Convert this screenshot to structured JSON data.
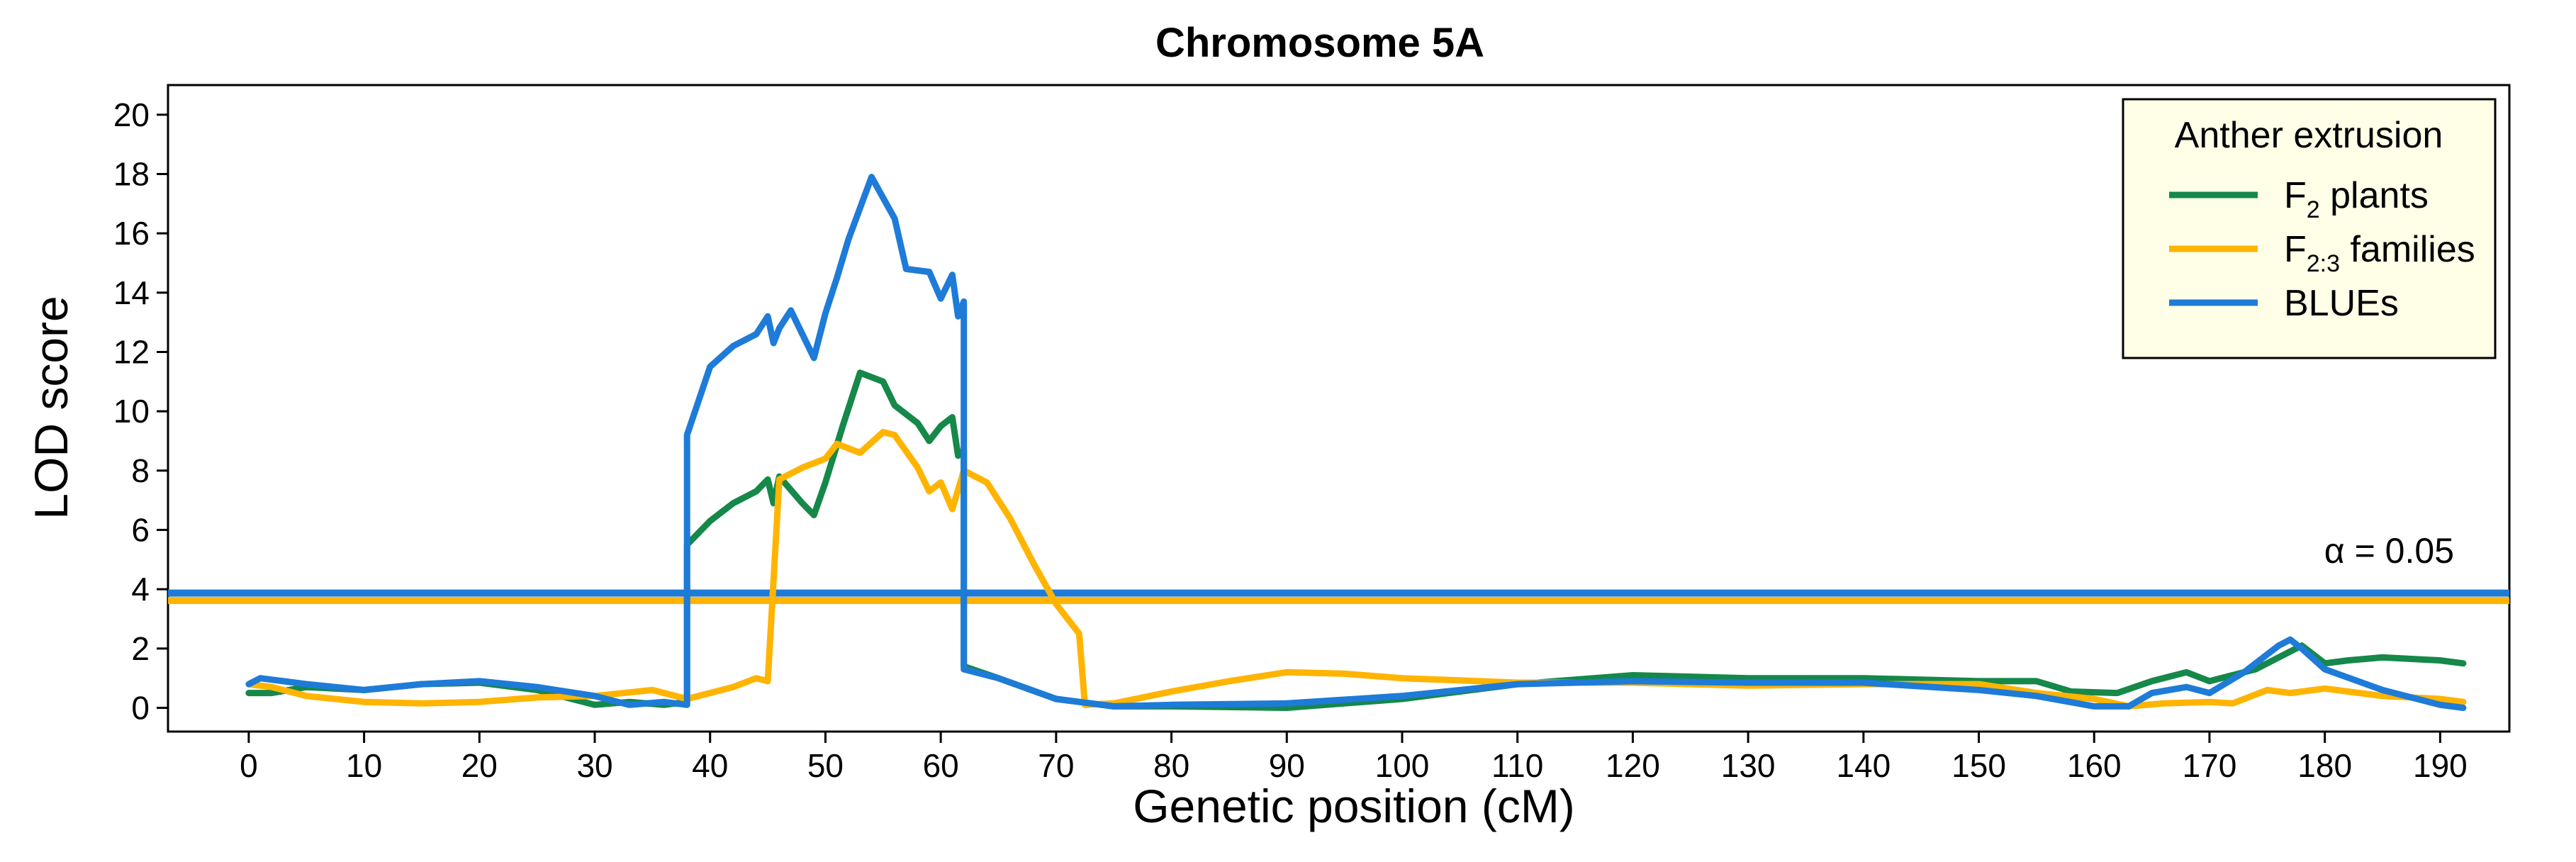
{
  "chart_data": {
    "type": "line",
    "title": "Chromosome 5A",
    "xlabel": "Genetic position (cM)",
    "ylabel": "LOD score",
    "xlim": [
      -7,
      196
    ],
    "ylim": [
      -0.8,
      21
    ],
    "xticks": [
      0,
      10,
      20,
      30,
      40,
      50,
      60,
      70,
      80,
      90,
      100,
      110,
      120,
      130,
      140,
      150,
      160,
      170,
      180,
      190
    ],
    "yticks": [
      0,
      2,
      4,
      6,
      8,
      10,
      12,
      14,
      16,
      18,
      20
    ],
    "grid": false,
    "legend": {
      "title": "Anther extrusion",
      "position": "top-right",
      "entries": [
        {
          "main": "F",
          "sub": "2",
          "rest": " plants"
        },
        {
          "main": "F",
          "sub": "2:3",
          "rest": " families"
        },
        {
          "main": "BLUEs",
          "sub": "",
          "rest": ""
        }
      ]
    },
    "thresholds": [
      {
        "value": 3.62,
        "color": "#FFB400"
      },
      {
        "value": 3.87,
        "color": "#1E7BD8"
      }
    ],
    "threshold_label": "α = 0.05",
    "series": [
      {
        "name": "F2 plants",
        "color": "#15884A",
        "points": [
          [
            0,
            0.5
          ],
          [
            2,
            0.5
          ],
          [
            5,
            0.7
          ],
          [
            10,
            0.6
          ],
          [
            15,
            0.8
          ],
          [
            20,
            0.85
          ],
          [
            25,
            0.6
          ],
          [
            30,
            0.1
          ],
          [
            33,
            0.2
          ],
          [
            36,
            0.1
          ],
          [
            38,
            0.2
          ],
          [
            38,
            5.5
          ],
          [
            40,
            6.3
          ],
          [
            42,
            6.9
          ],
          [
            44,
            7.3
          ],
          [
            45,
            7.7
          ],
          [
            45.5,
            6.9
          ],
          [
            46,
            7.8
          ],
          [
            48,
            6.9
          ],
          [
            49,
            6.5
          ],
          [
            50,
            7.6
          ],
          [
            51.5,
            9.5
          ],
          [
            53,
            11.3
          ],
          [
            55,
            11.0
          ],
          [
            56,
            10.2
          ],
          [
            58,
            9.6
          ],
          [
            59,
            9.0
          ],
          [
            60,
            9.5
          ],
          [
            61,
            9.8
          ],
          [
            61.5,
            8.5
          ],
          [
            62,
            8.7
          ],
          [
            62,
            1.4
          ],
          [
            65,
            1.0
          ],
          [
            70,
            0.3
          ],
          [
            75,
            0.05
          ],
          [
            80,
            0.05
          ],
          [
            90,
            0.0
          ],
          [
            100,
            0.3
          ],
          [
            110,
            0.8
          ],
          [
            120,
            1.1
          ],
          [
            130,
            1.0
          ],
          [
            140,
            1.0
          ],
          [
            150,
            0.9
          ],
          [
            155,
            0.9
          ],
          [
            158,
            0.55
          ],
          [
            162,
            0.5
          ],
          [
            165,
            0.9
          ],
          [
            168,
            1.2
          ],
          [
            170,
            0.9
          ],
          [
            174,
            1.3
          ],
          [
            176,
            1.7
          ],
          [
            178,
            2.1
          ],
          [
            180,
            1.5
          ],
          [
            182,
            1.6
          ],
          [
            185,
            1.7
          ],
          [
            190,
            1.6
          ],
          [
            192,
            1.5
          ]
        ]
      },
      {
        "name": "F2:3 families",
        "color": "#FFB400",
        "points": [
          [
            0,
            0.8
          ],
          [
            2,
            0.7
          ],
          [
            5,
            0.4
          ],
          [
            10,
            0.2
          ],
          [
            15,
            0.15
          ],
          [
            20,
            0.2
          ],
          [
            25,
            0.35
          ],
          [
            30,
            0.4
          ],
          [
            35,
            0.6
          ],
          [
            38,
            0.3
          ],
          [
            40,
            0.5
          ],
          [
            42,
            0.7
          ],
          [
            44,
            1.0
          ],
          [
            45,
            0.9
          ],
          [
            46,
            7.7
          ],
          [
            48,
            8.1
          ],
          [
            50,
            8.4
          ],
          [
            51,
            8.9
          ],
          [
            53,
            8.6
          ],
          [
            55,
            9.3
          ],
          [
            56,
            9.2
          ],
          [
            58,
            8.1
          ],
          [
            59,
            7.3
          ],
          [
            60,
            7.6
          ],
          [
            61,
            6.7
          ],
          [
            62,
            8.0
          ],
          [
            64,
            7.6
          ],
          [
            66,
            6.4
          ],
          [
            68,
            4.9
          ],
          [
            70,
            3.5
          ],
          [
            72,
            2.5
          ],
          [
            72.5,
            0.1
          ],
          [
            75,
            0.15
          ],
          [
            80,
            0.55
          ],
          [
            85,
            0.9
          ],
          [
            90,
            1.2
          ],
          [
            95,
            1.15
          ],
          [
            100,
            1.0
          ],
          [
            110,
            0.85
          ],
          [
            120,
            0.85
          ],
          [
            130,
            0.75
          ],
          [
            140,
            0.8
          ],
          [
            150,
            0.8
          ],
          [
            155,
            0.5
          ],
          [
            160,
            0.3
          ],
          [
            163,
            0.05
          ],
          [
            166,
            0.15
          ],
          [
            170,
            0.2
          ],
          [
            172,
            0.15
          ],
          [
            175,
            0.6
          ],
          [
            177,
            0.5
          ],
          [
            180,
            0.65
          ],
          [
            185,
            0.4
          ],
          [
            190,
            0.3
          ],
          [
            192,
            0.2
          ]
        ]
      },
      {
        "name": "BLUEs",
        "color": "#1E7BD8",
        "points": [
          [
            0,
            0.8
          ],
          [
            1,
            1.0
          ],
          [
            3,
            0.9
          ],
          [
            5,
            0.8
          ],
          [
            10,
            0.6
          ],
          [
            15,
            0.8
          ],
          [
            20,
            0.9
          ],
          [
            25,
            0.7
          ],
          [
            30,
            0.4
          ],
          [
            33,
            0.1
          ],
          [
            36,
            0.2
          ],
          [
            38,
            0.1
          ],
          [
            38,
            9.2
          ],
          [
            40,
            11.5
          ],
          [
            42,
            12.2
          ],
          [
            44,
            12.6
          ],
          [
            45,
            13.2
          ],
          [
            45.5,
            12.3
          ],
          [
            46,
            12.8
          ],
          [
            47,
            13.4
          ],
          [
            48,
            12.6
          ],
          [
            49,
            11.8
          ],
          [
            50,
            13.3
          ],
          [
            51,
            14.5
          ],
          [
            52,
            15.8
          ],
          [
            54,
            17.9
          ],
          [
            56,
            16.5
          ],
          [
            57,
            14.8
          ],
          [
            59,
            14.7
          ],
          [
            60,
            13.8
          ],
          [
            61,
            14.6
          ],
          [
            61.5,
            13.2
          ],
          [
            62,
            13.7
          ],
          [
            62,
            1.3
          ],
          [
            65,
            1.0
          ],
          [
            70,
            0.3
          ],
          [
            75,
            0.05
          ],
          [
            80,
            0.1
          ],
          [
            90,
            0.15
          ],
          [
            100,
            0.4
          ],
          [
            110,
            0.8
          ],
          [
            120,
            0.9
          ],
          [
            130,
            0.85
          ],
          [
            140,
            0.85
          ],
          [
            150,
            0.6
          ],
          [
            155,
            0.4
          ],
          [
            160,
            0.05
          ],
          [
            163,
            0.05
          ],
          [
            165,
            0.5
          ],
          [
            168,
            0.7
          ],
          [
            170,
            0.5
          ],
          [
            173,
            1.2
          ],
          [
            176,
            2.1
          ],
          [
            177,
            2.3
          ],
          [
            178,
            2.0
          ],
          [
            180,
            1.3
          ],
          [
            185,
            0.6
          ],
          [
            190,
            0.1
          ],
          [
            192,
            0.0
          ]
        ]
      }
    ]
  }
}
